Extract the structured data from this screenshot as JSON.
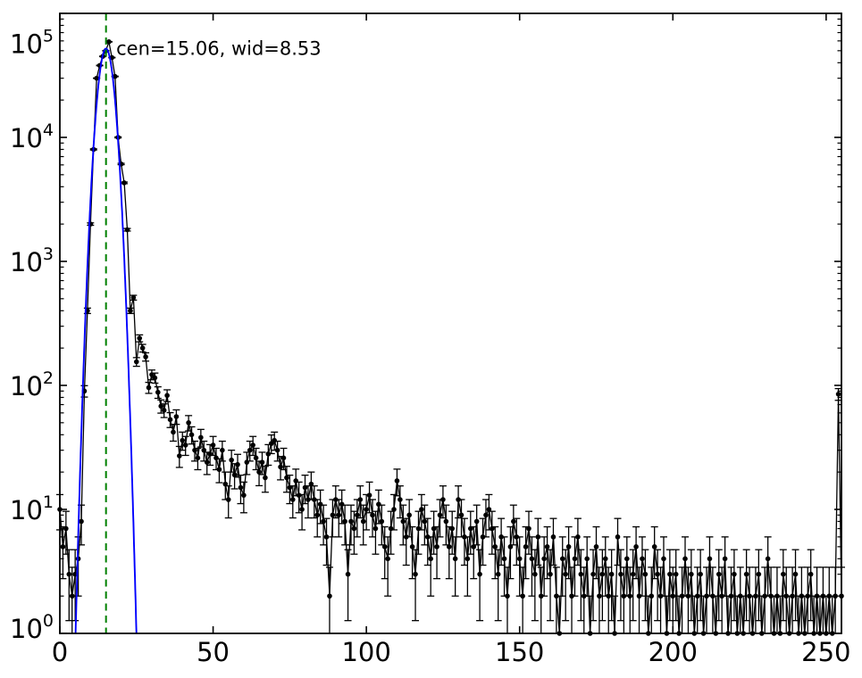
{
  "figure": {
    "background": "#ffffff",
    "axes_color": "#000000"
  },
  "chart_data": {
    "type": "line",
    "title": "",
    "xlabel": "",
    "ylabel": "",
    "xlim": [
      0,
      255
    ],
    "ylim": [
      1,
      100000
    ],
    "y_scale": "log10",
    "grid": false,
    "legend": null,
    "x_ticks": [
      0,
      50,
      100,
      150,
      200,
      250
    ],
    "y_ticks": {
      "base": "10",
      "exponents": [
        0,
        1,
        2,
        3,
        4,
        5
      ]
    },
    "annotations": [
      {
        "text": "cen=15.06, wid=8.53",
        "color": "#008000",
        "x": 18.4,
        "log_y": 4.78
      }
    ],
    "series": [
      {
        "name": "histogram-counts",
        "color": "#000000",
        "marker": "point",
        "line": "solid",
        "error_bars": "poisson-sqrt",
        "x_start": 0,
        "x_step": 1,
        "values": [
          10,
          5,
          7,
          3,
          2,
          3,
          4,
          8,
          90,
          400,
          2000,
          8000,
          30000,
          38000,
          45000,
          50000,
          59000,
          44000,
          31000,
          10000,
          6100,
          4300,
          1800,
          400,
          510,
          155,
          240,
          200,
          170,
          96,
          122,
          115,
          88,
          68,
          63,
          83,
          53,
          42,
          56,
          27,
          36,
          33,
          50,
          40,
          30,
          26,
          38,
          30,
          24,
          28,
          33,
          26,
          21,
          30,
          16,
          12,
          25,
          19,
          23,
          15,
          13,
          24,
          30,
          33,
          26,
          20,
          24,
          18,
          28,
          34,
          36,
          30,
          22,
          26,
          18,
          15,
          12,
          17,
          13,
          10,
          15,
          12,
          16,
          12,
          9,
          11,
          8,
          6,
          2,
          9,
          12,
          9,
          11,
          8,
          3,
          8,
          7,
          9,
          12,
          8,
          10,
          13,
          9,
          7,
          11,
          8,
          5,
          4,
          7,
          10,
          17,
          12,
          8,
          6,
          9,
          5,
          3,
          7,
          10,
          8,
          6,
          4,
          7,
          5,
          9,
          12,
          8,
          5,
          7,
          4,
          12,
          9,
          6,
          4,
          7,
          5,
          8,
          3,
          6,
          9,
          10,
          7,
          5,
          3,
          6,
          4,
          2,
          5,
          8,
          6,
          4,
          2,
          5,
          7,
          4,
          3,
          6,
          2,
          4,
          5,
          3,
          6,
          2,
          1,
          4,
          3,
          5,
          2,
          4,
          6,
          3,
          2,
          4,
          1,
          3,
          5,
          2,
          3,
          4,
          2,
          3,
          1,
          6,
          3,
          2,
          4,
          2,
          3,
          5,
          2,
          4,
          3,
          1,
          2,
          5,
          3,
          2,
          4,
          1,
          3,
          2,
          3,
          1,
          2,
          4,
          2,
          3,
          1,
          2,
          3,
          1,
          2,
          4,
          2,
          1,
          3,
          2,
          4,
          1,
          2,
          3,
          1,
          2,
          1,
          3,
          2,
          1,
          2,
          3,
          1,
          2,
          4,
          2,
          1,
          2,
          1,
          3,
          2,
          1,
          2,
          3,
          1,
          2,
          1,
          2,
          3,
          1,
          2,
          1,
          2,
          1,
          2,
          1,
          2,
          85,
          2
        ]
      },
      {
        "name": "gaussian-fit",
        "color": "#0000ff",
        "line": "solid",
        "fit": {
          "center": 15.06,
          "width_label": 8.53,
          "sigma_plot": 2.13,
          "amplitude": 52000
        }
      },
      {
        "name": "center-line",
        "color": "#008000",
        "line": "dashed",
        "x": 15.06
      }
    ]
  }
}
